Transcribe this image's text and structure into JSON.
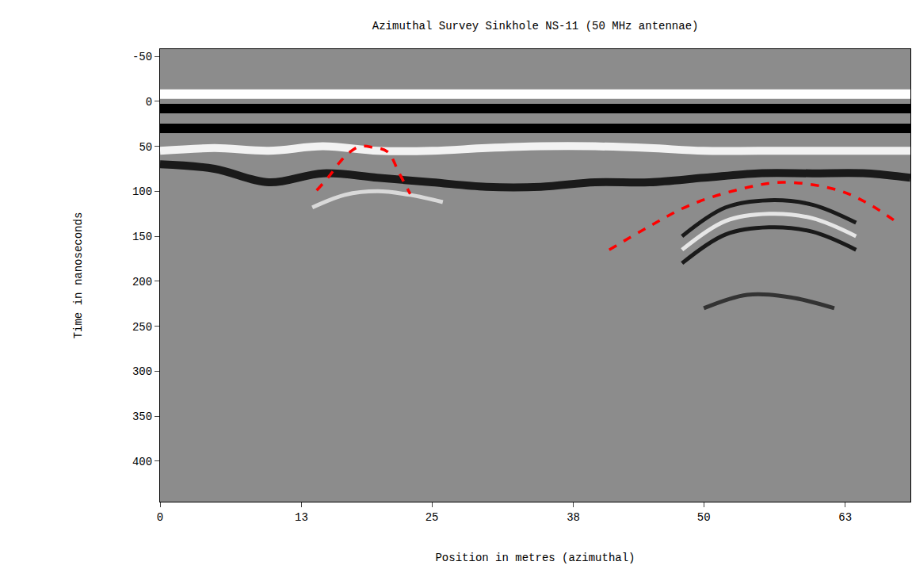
{
  "chart_data": {
    "type": "line",
    "title": "Azimuthal Survey Sinkhole NS-11 (50 MHz antennae)",
    "x_label": "Position in metres (azimuthal)",
    "y_label": "Time in nanoseconds",
    "xlim": [
      0,
      69
    ],
    "xticks": [
      0,
      13,
      25,
      38,
      50,
      63
    ],
    "ylim": [
      445,
      -58
    ],
    "yticks": [
      -50,
      0,
      50,
      100,
      150,
      200,
      250,
      300,
      350,
      400
    ],
    "grid": false,
    "series": [
      {
        "color": "#ffffff",
        "line_style": "solid",
        "x": [
          0,
          69
        ],
        "values": [
          -8,
          -8
        ]
      },
      {
        "color": "#000000",
        "line_style": "solid",
        "x": [
          0,
          69
        ],
        "values": [
          8,
          8
        ]
      },
      {
        "color": "#000000",
        "line_style": "solid",
        "x": [
          0,
          69
        ],
        "values": [
          30,
          30
        ]
      },
      {
        "color": "#f2f2f2",
        "line_style": "solid",
        "x": [
          0,
          5,
          10,
          15,
          20,
          25,
          30,
          35,
          40,
          45,
          50,
          55,
          60,
          65,
          69
        ],
        "values": [
          55,
          52,
          55,
          50,
          55,
          55,
          52,
          50,
          50,
          52,
          55,
          55,
          55,
          55,
          55
        ]
      },
      {
        "color": "#1a1a1a",
        "line_style": "solid",
        "x": [
          0,
          5,
          10,
          15,
          20,
          25,
          30,
          35,
          40,
          45,
          50,
          55,
          60,
          65,
          69
        ],
        "values": [
          70,
          75,
          90,
          80,
          85,
          90,
          95,
          95,
          90,
          90,
          85,
          80,
          80,
          80,
          85
        ]
      },
      {
        "color": "#d9d9d9",
        "line_style": "solid",
        "x": [
          14,
          17,
          20,
          23,
          26
        ],
        "values": [
          118,
          104,
          100,
          104,
          112
        ]
      },
      {
        "color": "#1a1a1a",
        "line_style": "solid",
        "x": [
          48,
          52,
          56,
          60,
          64
        ],
        "values": [
          150,
          118,
          110,
          115,
          135
        ]
      },
      {
        "color": "#e6e6e6",
        "line_style": "solid",
        "x": [
          48,
          52,
          56,
          60,
          64
        ],
        "values": [
          165,
          133,
          125,
          130,
          150
        ]
      },
      {
        "color": "#1a1a1a",
        "line_style": "solid",
        "x": [
          48,
          52,
          56,
          60,
          64
        ],
        "values": [
          180,
          148,
          140,
          145,
          165
        ]
      },
      {
        "color": "#333333",
        "line_style": "solid",
        "x": [
          50,
          54,
          58,
          62
        ],
        "values": [
          230,
          215,
          218,
          230
        ]
      },
      {
        "color": "#ff0000",
        "line_style": "dashed",
        "x": [
          14.4,
          15.5,
          16.5,
          17.5,
          18.4,
          19.5,
          20.9,
          22,
          23
        ],
        "values": [
          99,
          84,
          68,
          56,
          50,
          51,
          56,
          80,
          103
        ]
      },
      {
        "color": "#ff0000",
        "line_style": "dashed",
        "x": [
          41.3,
          45,
          48.6,
          52.9,
          57.3,
          62.4,
          65.3,
          67.7
        ],
        "values": [
          165,
          139,
          116,
          99,
          90,
          99,
          115,
          134
        ]
      }
    ]
  }
}
